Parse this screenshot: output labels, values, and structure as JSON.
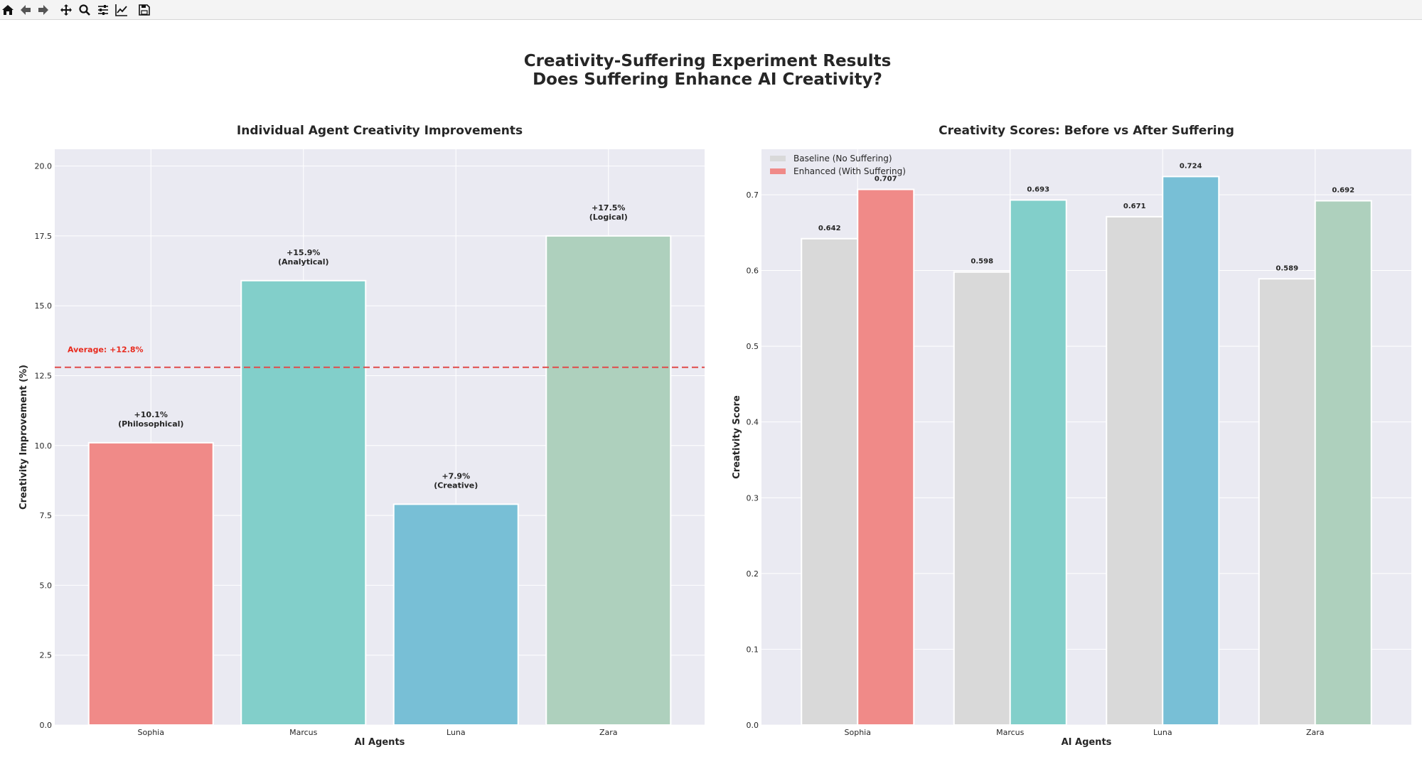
{
  "toolbar": {
    "icons": [
      "home-icon",
      "back-arrow-icon",
      "forward-arrow-icon",
      "pan-icon",
      "zoom-icon",
      "configure-subplots-icon",
      "edit-axes-icon",
      "save-icon"
    ]
  },
  "figure": {
    "suptitle_line1": "Creativity-Suffering Experiment Results",
    "suptitle_line2": "Does Suffering Enhance AI Creativity?"
  },
  "colors": {
    "background": "#eaeaf2",
    "grid": "#ffffff",
    "text": "#262626",
    "baseline": "#d9d9d9",
    "sophia": "#f08a88",
    "marcus": "#82cfca",
    "luna": "#78bfd6",
    "zara": "#aed0bd",
    "average_line": "#e04b4b",
    "average_text": "#e8291c"
  },
  "chart_data": [
    {
      "type": "bar",
      "title": "Individual Agent Creativity Improvements",
      "xlabel": "AI Agents",
      "ylabel": "Creativity Improvement (%)",
      "categories": [
        "Sophia",
        "Marcus",
        "Luna",
        "Zara"
      ],
      "values": [
        10.1,
        15.9,
        7.9,
        17.5
      ],
      "value_labels": [
        "+10.1%",
        "+15.9%",
        "+7.9%",
        "+17.5%"
      ],
      "type_labels": [
        "(Philosophical)",
        "(Analytical)",
        "(Creative)",
        "(Logical)"
      ],
      "bar_colors": [
        "#f08a88",
        "#82cfca",
        "#78bfd6",
        "#aed0bd"
      ],
      "ylim": [
        0,
        20.6
      ],
      "yticks": [
        "0.0",
        "2.5",
        "5.0",
        "7.5",
        "10.0",
        "12.5",
        "15.0",
        "17.5",
        "20.0"
      ],
      "average": 12.8,
      "average_label": "Average: +12.8%",
      "grid": true
    },
    {
      "type": "bar",
      "title": "Creativity Scores: Before vs After Suffering",
      "xlabel": "AI Agents",
      "ylabel": "Creativity Score",
      "categories": [
        "Sophia",
        "Marcus",
        "Luna",
        "Zara"
      ],
      "series": [
        {
          "name": "Baseline (No Suffering)",
          "values": [
            0.642,
            0.598,
            0.671,
            0.589
          ],
          "labels": [
            "0.642",
            "0.598",
            "0.671",
            "0.589"
          ]
        },
        {
          "name": "Enhanced (With Suffering)",
          "values": [
            0.707,
            0.693,
            0.724,
            0.692
          ],
          "labels": [
            "0.707",
            "0.693",
            "0.724",
            "0.692"
          ]
        }
      ],
      "ylim": [
        0,
        0.76
      ],
      "yticks": [
        "0.0",
        "0.1",
        "0.2",
        "0.3",
        "0.4",
        "0.5",
        "0.6",
        "0.7"
      ],
      "legend_position": "top-left",
      "grid": true
    }
  ]
}
